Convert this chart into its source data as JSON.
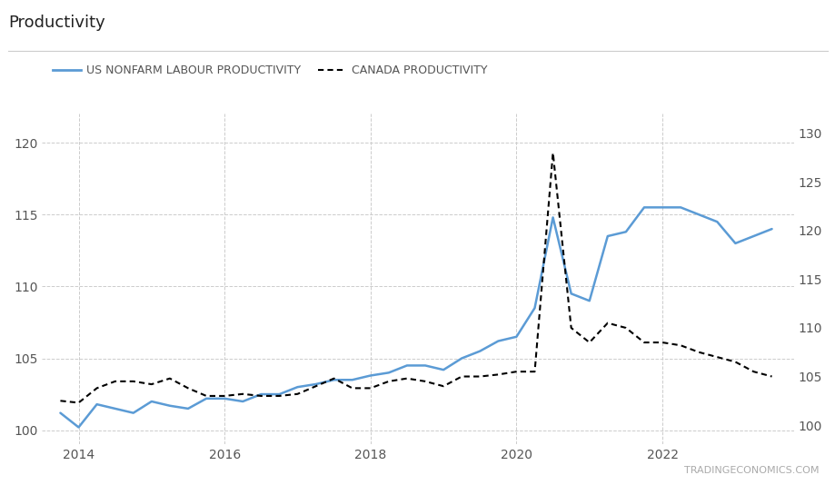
{
  "title": "Productivity",
  "legend_us": "US NONFARM LABOUR PRODUCTIVITY",
  "legend_ca": "CANADA PRODUCTIVITY",
  "watermark": "TRADINGECONOMICS.COM",
  "us_color": "#5B9BD5",
  "ca_color": "#000000",
  "background_color": "#ffffff",
  "grid_color": "#cccccc",
  "title_fontsize": 13,
  "legend_fontsize": 9,
  "axis_label_color": "#555555",
  "left_ylim": [
    99,
    122
  ],
  "right_ylim": [
    98,
    132
  ],
  "left_yticks": [
    100,
    105,
    110,
    115,
    120
  ],
  "right_yticks": [
    100,
    105,
    110,
    115,
    120,
    125,
    130
  ],
  "us_x": [
    2013.75,
    2014.0,
    2014.25,
    2014.5,
    2014.75,
    2015.0,
    2015.25,
    2015.5,
    2015.75,
    2016.0,
    2016.25,
    2016.5,
    2016.75,
    2017.0,
    2017.25,
    2017.5,
    2017.75,
    2018.0,
    2018.25,
    2018.5,
    2018.75,
    2019.0,
    2019.25,
    2019.5,
    2019.75,
    2020.0,
    2020.25,
    2020.5,
    2020.75,
    2021.0,
    2021.25,
    2021.5,
    2021.75,
    2022.0,
    2022.25,
    2022.5,
    2022.75,
    2023.0,
    2023.25,
    2023.5
  ],
  "us_y": [
    101.2,
    100.2,
    101.8,
    101.5,
    101.2,
    102.0,
    101.7,
    101.5,
    102.2,
    102.2,
    102.0,
    102.5,
    102.5,
    103.0,
    103.2,
    103.5,
    103.5,
    103.8,
    104.0,
    104.5,
    104.5,
    104.2,
    105.0,
    105.5,
    106.2,
    106.5,
    108.5,
    114.8,
    109.5,
    109.0,
    113.5,
    113.8,
    115.5,
    115.5,
    115.5,
    115.0,
    114.5,
    113.0,
    113.5,
    114.0
  ],
  "ca_x": [
    2013.75,
    2014.0,
    2014.25,
    2014.5,
    2014.75,
    2015.0,
    2015.25,
    2015.5,
    2015.75,
    2016.0,
    2016.25,
    2016.5,
    2016.75,
    2017.0,
    2017.25,
    2017.5,
    2017.75,
    2018.0,
    2018.25,
    2018.5,
    2018.75,
    2019.0,
    2019.25,
    2019.5,
    2019.75,
    2020.0,
    2020.25,
    2020.5,
    2020.75,
    2021.0,
    2021.25,
    2021.5,
    2021.75,
    2022.0,
    2022.25,
    2022.5,
    2022.75,
    2023.0,
    2023.25,
    2023.5
  ],
  "ca_y": [
    102.5,
    102.3,
    103.8,
    104.5,
    104.5,
    104.2,
    104.8,
    103.8,
    103.0,
    103.0,
    103.2,
    103.0,
    103.0,
    103.2,
    104.0,
    104.8,
    103.8,
    103.8,
    104.5,
    104.8,
    104.5,
    104.0,
    105.0,
    105.0,
    105.2,
    105.5,
    105.5,
    128.0,
    110.0,
    108.5,
    110.5,
    110.0,
    108.5,
    108.5,
    108.2,
    107.5,
    107.0,
    106.5,
    105.5,
    105.0
  ],
  "xticks": [
    2014,
    2016,
    2018,
    2020,
    2022
  ],
  "xlim": [
    2013.5,
    2023.8
  ]
}
